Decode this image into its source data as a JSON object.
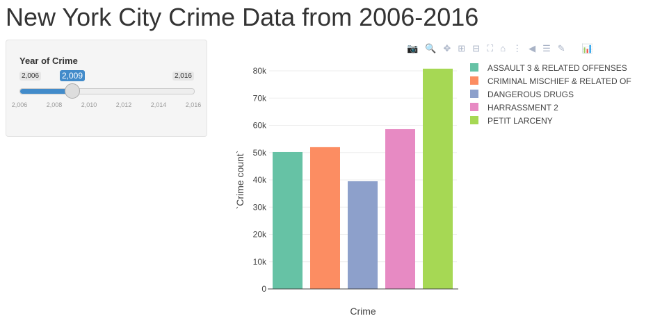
{
  "title": "New York City Crime Data from 2006-2016",
  "slider": {
    "label": "Year of Crime",
    "min": "2,006",
    "max": "2,016",
    "value": "2,009",
    "value_num": 2009,
    "min_num": 2006,
    "max_num": 2016,
    "ticks": [
      "2,006",
      "2,008",
      "2,010",
      "2,012",
      "2,014",
      "2,016"
    ],
    "accent": "#428bca"
  },
  "modebar": [
    "camera-icon",
    "zoom-icon",
    "pan-icon",
    "zoom-in-icon",
    "zoom-out-icon",
    "autoscale-icon",
    "home-icon",
    "spike-lines-icon",
    "hover-closest-icon",
    "hover-compare-icon",
    "edit-chart-icon",
    "plotly-logo-icon"
  ],
  "chart_data": {
    "type": "bar",
    "categories": [
      "ASSAULT 3 & RELATED OFFENSES",
      "CRIMINAL MISCHIEF & RELATED OF",
      "DANGEROUS DRUGS",
      "HARRASSMENT 2",
      "PETIT LARCENY"
    ],
    "values": [
      50200,
      52000,
      39500,
      58600,
      80800
    ],
    "colors": [
      "#66c2a5",
      "#fc8d62",
      "#8da0cb",
      "#e78ac3",
      "#a6d854"
    ],
    "xlabel": "Crime",
    "ylabel": "`Crime count`",
    "ylim": [
      0,
      80800
    ],
    "yticks": [
      0,
      10000,
      20000,
      30000,
      40000,
      50000,
      60000,
      70000,
      80000
    ],
    "ytick_labels": [
      "0",
      "10k",
      "20k",
      "30k",
      "40k",
      "50k",
      "60k",
      "70k",
      "80k"
    ],
    "grid": true,
    "legend": "right"
  }
}
